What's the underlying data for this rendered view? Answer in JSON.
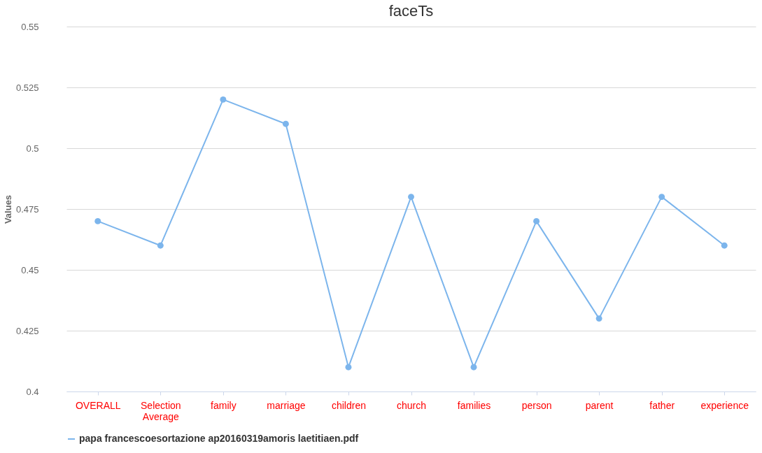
{
  "chart_data": {
    "type": "line",
    "title": "faceTs",
    "ylabel": "Values",
    "categories": [
      "OVERALL",
      "Selection Average",
      "family",
      "marriage",
      "children",
      "church",
      "families",
      "person",
      "parent",
      "father",
      "experience"
    ],
    "series": [
      {
        "name": "papa francescoesortazione ap20160319amoris laetitiaen.pdf",
        "color": "#7cb5ec",
        "values": [
          0.47,
          0.46,
          0.52,
          0.51,
          0.41,
          0.48,
          0.41,
          0.47,
          0.43,
          0.48,
          0.46
        ]
      }
    ],
    "ylim": [
      0.4,
      0.55
    ],
    "yticks": [
      0.4,
      0.425,
      0.45,
      0.475,
      0.5,
      0.525,
      0.55
    ],
    "grid": "y",
    "legend": "bottom",
    "marker": "circle",
    "line_style": "solid"
  }
}
